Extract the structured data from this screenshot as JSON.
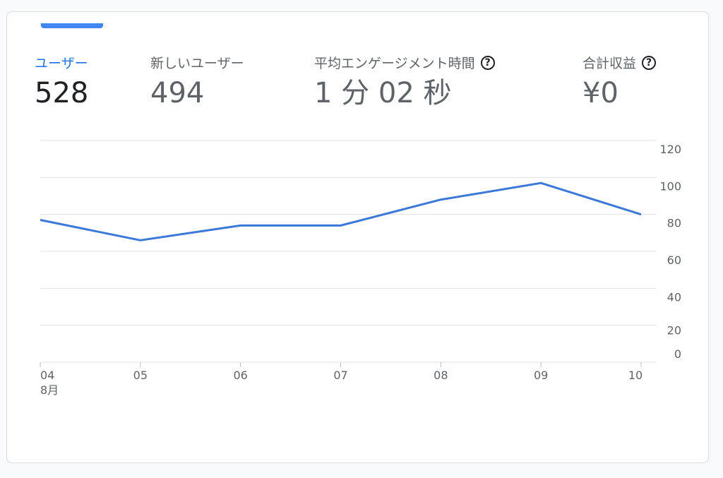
{
  "metrics": [
    {
      "label": "ユーザー",
      "value": "528",
      "help": false
    },
    {
      "label": "新しいユーザー",
      "value": "494",
      "help": false
    },
    {
      "label": "平均エンゲージメント時間",
      "value": "1 分 02 秒",
      "help": true
    },
    {
      "label": "合計収益",
      "value": "¥0",
      "help": true
    }
  ],
  "help_icon": "help-circle-icon",
  "colors": {
    "accent": "#1a73e8",
    "line": "#3c78d8",
    "grid": "#e0e0e0"
  },
  "chart_data": {
    "type": "line",
    "x": [
      "04",
      "05",
      "06",
      "07",
      "08",
      "09",
      "10"
    ],
    "x_sublabel": "8月",
    "series": [
      {
        "values": [
          77,
          66,
          74,
          74,
          88,
          97,
          80
        ]
      }
    ],
    "yticks": [
      0,
      20,
      40,
      60,
      80,
      100,
      120
    ],
    "ylim": [
      0,
      120
    ],
    "grid": true,
    "yaxis_position": "right"
  }
}
